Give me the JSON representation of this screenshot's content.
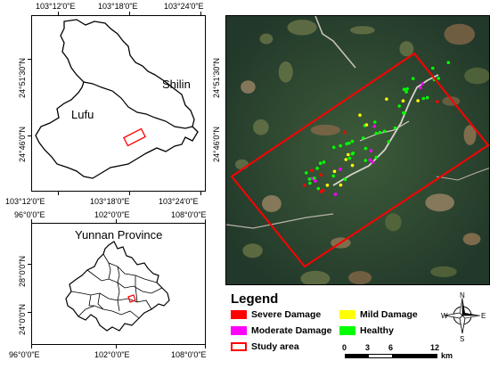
{
  "county_map": {
    "top_labels": [
      "103°12'0\"E",
      "103°18'0\"E",
      "103°24'0\"E"
    ],
    "bottom_labels": [
      "103°12'0\"E",
      "103°18'0\"E",
      "103°24'0\"E"
    ],
    "left_labels": [
      "24°51'30\"N",
      "24°46'0\"N"
    ],
    "region_a": "Shilin",
    "region_b": "Lufu"
  },
  "province_map": {
    "top_labels": [
      "96°0'0\"E",
      "102°0'0\"E",
      "108°0'0\"E"
    ],
    "bottom_labels": [
      "96°0'0\"E",
      "102°0'0\"E",
      "108°0'0\"E"
    ],
    "left_labels": [
      "28°0'0\"N",
      "24°0'0\"N"
    ],
    "title": "Yunnan Province"
  },
  "satellite_map": {
    "right_labels": [
      "24°51'30\"N",
      "24°46'0\"N"
    ]
  },
  "legend": {
    "title": "Legend",
    "items": [
      {
        "label": "Severe Damage",
        "color": "#ff0000",
        "kind": "fill"
      },
      {
        "label": "Moderate Damage",
        "color": "#ff00ff",
        "kind": "fill"
      },
      {
        "label": "Study area",
        "color": "#ff0000",
        "kind": "outline"
      },
      {
        "label": "Mild Damage",
        "color": "#ffff00",
        "kind": "fill"
      },
      {
        "label": "Healthy",
        "color": "#00ff00",
        "kind": "fill"
      }
    ]
  },
  "scale_bar": {
    "ticks": [
      "0",
      "3",
      "6",
      "12"
    ],
    "unit": "km"
  },
  "compass": {
    "n": "N",
    "s": "S",
    "e": "E",
    "w": "W"
  },
  "colors": {
    "study_area": "#ff0000",
    "satellite_base": "#2f4a33"
  }
}
